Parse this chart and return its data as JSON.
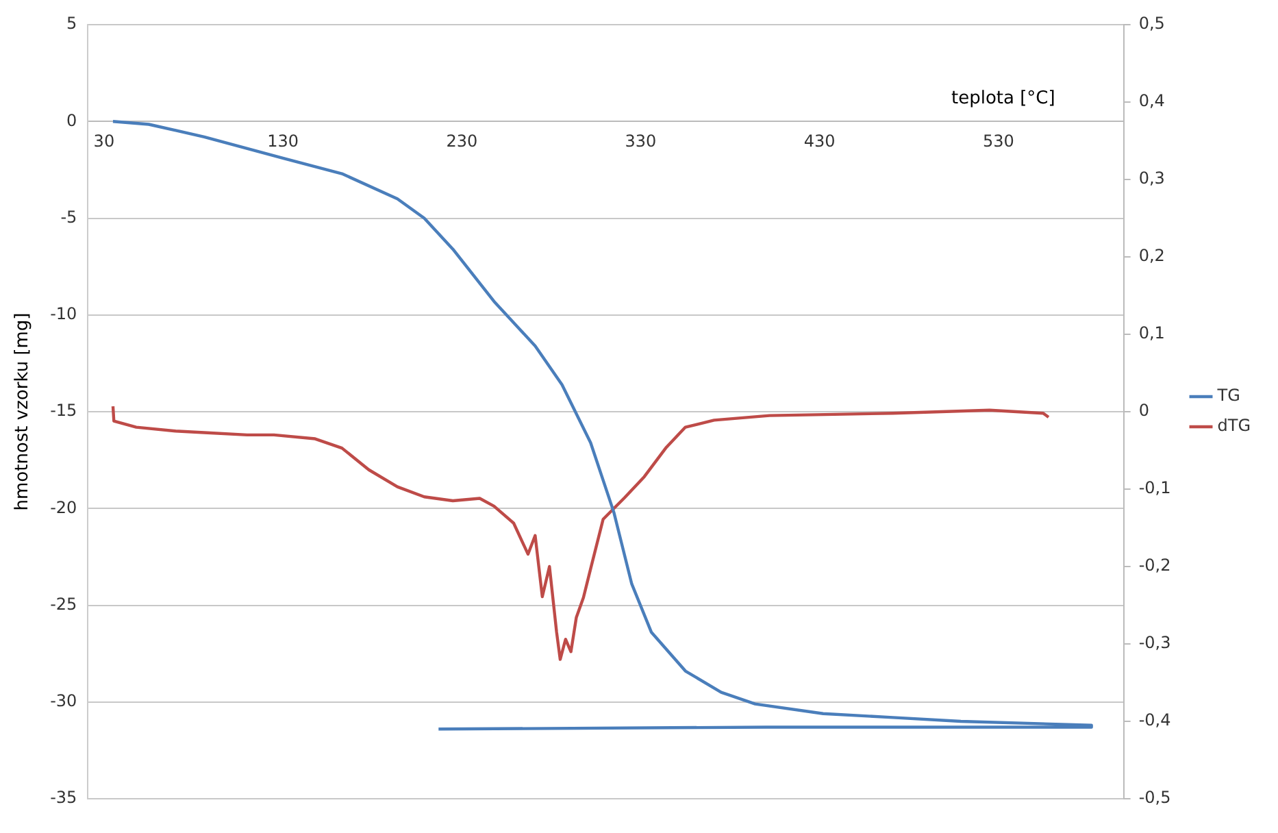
{
  "chart_data": {
    "type": "line",
    "xlabel": "teplota [°C]",
    "ylabel": "hmotnost vzorku [mg]",
    "xlim": [
      21,
      600
    ],
    "xticks": [
      30,
      130,
      230,
      330,
      430,
      530
    ],
    "ylim": [
      -35,
      5
    ],
    "yticks": [
      -35,
      -30,
      -25,
      -20,
      -15,
      -10,
      -5,
      0,
      5
    ],
    "y2lim": [
      -0.5,
      0.5
    ],
    "y2ticks": [
      {
        "value": -0.5,
        "label": "-0,5"
      },
      {
        "value": -0.4,
        "label": "-0,4"
      },
      {
        "value": -0.3,
        "label": "-0,3"
      },
      {
        "value": -0.2,
        "label": "-0,2"
      },
      {
        "value": -0.1,
        "label": "-0,1"
      },
      {
        "value": 0,
        "label": "0"
      },
      {
        "value": 0.1,
        "label": "0,1"
      },
      {
        "value": 0.2,
        "label": "0,2"
      },
      {
        "value": 0.3,
        "label": "0,3"
      },
      {
        "value": 0.4,
        "label": "0,4"
      },
      {
        "value": 0.5,
        "label": "0,5"
      }
    ],
    "grid": "y",
    "legend": "right",
    "series": [
      {
        "name": "TG",
        "color": "#4a7ebb",
        "x": [
          35,
          55,
          86,
          130,
          163,
          194,
          209,
          225,
          248,
          271,
          286,
          302,
          315,
          325,
          336,
          355,
          375,
          394,
          432,
          471,
          509,
          582,
          582,
          400,
          217
        ],
        "values": [
          0,
          -0.15,
          -0.8,
          -1.9,
          -2.7,
          -4.0,
          -5.0,
          -6.6,
          -9.3,
          -11.6,
          -13.6,
          -16.6,
          -20.2,
          -23.9,
          -26.4,
          -28.4,
          -29.5,
          -30.1,
          -30.6,
          -30.8,
          -31.0,
          -31.2,
          -31.3,
          -31.3,
          -31.4
        ]
      },
      {
        "name": "dTG",
        "color": "#be4b48",
        "axis": "y2",
        "x": [
          35,
          35.5,
          48,
          70,
          86,
          110,
          125,
          148,
          163,
          178,
          194,
          209,
          225,
          240,
          248,
          259,
          267,
          271,
          275,
          279,
          283,
          285,
          288,
          291,
          294,
          298,
          302,
          309,
          321,
          332,
          344,
          355,
          371,
          402,
          471,
          525,
          555,
          558
        ],
        "values": [
          0.007,
          -0.012,
          -0.02,
          -0.025,
          -0.027,
          -0.03,
          -0.03,
          -0.035,
          -0.047,
          -0.075,
          -0.097,
          -0.11,
          -0.115,
          -0.112,
          -0.122,
          -0.144,
          -0.184,
          -0.16,
          -0.239,
          -0.2,
          -0.285,
          -0.32,
          -0.294,
          -0.31,
          -0.266,
          -0.24,
          -0.203,
          -0.139,
          -0.111,
          -0.084,
          -0.047,
          -0.02,
          -0.011,
          -0.005,
          -0.002,
          0.002,
          -0.002,
          -0.007
        ]
      }
    ]
  }
}
